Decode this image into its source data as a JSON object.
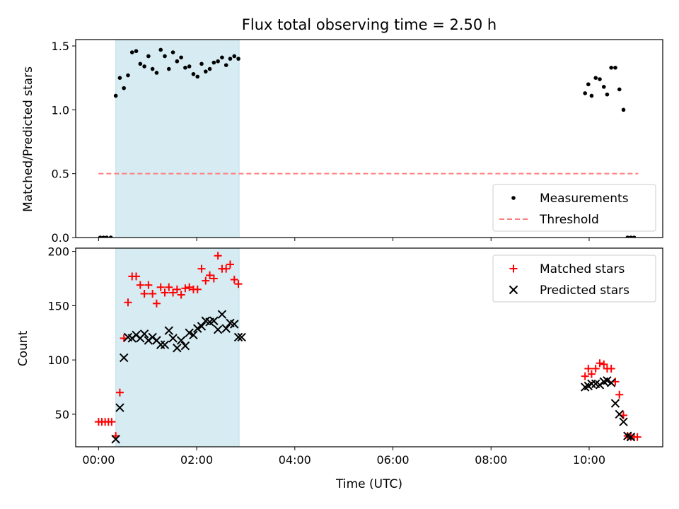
{
  "chart_data": [
    {
      "type": "scatter",
      "title": "Flux total observing time = 2.50 h",
      "xlabel": "",
      "ylabel": "Matched/Predicted stars",
      "xlim": [
        "-00:28",
        "11:30"
      ],
      "ylim": [
        0.0,
        1.55
      ],
      "xticks": [
        "00:00",
        "02:00",
        "04:00",
        "06:00",
        "08:00",
        "10:00"
      ],
      "xticklabels_visible": false,
      "yticks": [
        0.0,
        0.5,
        1.0,
        1.5
      ],
      "yticklabels": [
        "0.0",
        "0.5",
        "1.0",
        "1.5"
      ],
      "highlight_span": {
        "from": "00:21",
        "to": "02:52",
        "color": "#add8e6"
      },
      "legend": {
        "position": "lower right",
        "entries": [
          "Measurements",
          "Threshold"
        ]
      },
      "threshold": {
        "name": "Threshold",
        "y": 0.5,
        "x_from": "00:00",
        "x_to": "11:00",
        "color": "#ff7f7f",
        "style": "dashed"
      },
      "series": [
        {
          "name": "Measurements",
          "marker": "dot",
          "color": "#000000",
          "points": [
            [
              "00:02",
              0.0
            ],
            [
              "00:06",
              0.0
            ],
            [
              "00:10",
              0.0
            ],
            [
              "00:15",
              0.0
            ],
            [
              "00:21",
              1.11
            ],
            [
              "00:26",
              1.25
            ],
            [
              "00:31",
              1.17
            ],
            [
              "00:36",
              1.27
            ],
            [
              "00:41",
              1.45
            ],
            [
              "00:46",
              1.46
            ],
            [
              "00:51",
              1.36
            ],
            [
              "00:56",
              1.34
            ],
            [
              "01:01",
              1.42
            ],
            [
              "01:06",
              1.32
            ],
            [
              "01:11",
              1.29
            ],
            [
              "01:16",
              1.47
            ],
            [
              "01:21",
              1.42
            ],
            [
              "01:26",
              1.32
            ],
            [
              "01:31",
              1.45
            ],
            [
              "01:36",
              1.38
            ],
            [
              "01:41",
              1.41
            ],
            [
              "01:46",
              1.33
            ],
            [
              "01:51",
              1.34
            ],
            [
              "01:56",
              1.28
            ],
            [
              "02:01",
              1.26
            ],
            [
              "02:06",
              1.36
            ],
            [
              "02:11",
              1.3
            ],
            [
              "02:16",
              1.32
            ],
            [
              "02:21",
              1.37
            ],
            [
              "02:26",
              1.38
            ],
            [
              "02:31",
              1.41
            ],
            [
              "02:36",
              1.35
            ],
            [
              "02:41",
              1.4
            ],
            [
              "02:46",
              1.42
            ],
            [
              "02:51",
              1.4
            ],
            [
              "09:55",
              1.13
            ],
            [
              "09:59",
              1.2
            ],
            [
              "10:03",
              1.11
            ],
            [
              "10:08",
              1.25
            ],
            [
              "10:13",
              1.24
            ],
            [
              "10:18",
              1.18
            ],
            [
              "10:22",
              1.12
            ],
            [
              "10:27",
              1.33
            ],
            [
              "10:32",
              1.33
            ],
            [
              "10:37",
              1.16
            ],
            [
              "10:42",
              1.0
            ],
            [
              "10:47",
              0.0
            ],
            [
              "10:51",
              0.0
            ],
            [
              "10:55",
              0.0
            ]
          ]
        }
      ]
    },
    {
      "type": "scatter",
      "title": "",
      "xlabel": "Time (UTC)",
      "ylabel": "Count",
      "xlim": [
        "-00:28",
        "11:30"
      ],
      "ylim": [
        20,
        203
      ],
      "xticks": [
        "00:00",
        "02:00",
        "04:00",
        "06:00",
        "08:00",
        "10:00"
      ],
      "xticklabels": [
        "00:00",
        "02:00",
        "04:00",
        "06:00",
        "08:00",
        "10:00"
      ],
      "yticks": [
        50,
        100,
        150,
        200
      ],
      "yticklabels": [
        "50",
        "100",
        "150",
        "200"
      ],
      "highlight_span": {
        "from": "00:21",
        "to": "02:52",
        "color": "#add8e6"
      },
      "legend": {
        "position": "upper right",
        "entries": [
          "Matched stars",
          "Predicted stars"
        ]
      },
      "series": [
        {
          "name": "Matched stars",
          "marker": "plus",
          "color": "#ff0000",
          "points": [
            [
              "00:00",
              43
            ],
            [
              "00:04",
              43
            ],
            [
              "00:08",
              43
            ],
            [
              "00:12",
              43
            ],
            [
              "00:16",
              43
            ],
            [
              "00:21",
              30
            ],
            [
              "00:26",
              70
            ],
            [
              "00:31",
              120
            ],
            [
              "00:36",
              153
            ],
            [
              "00:41",
              177
            ],
            [
              "00:46",
              177
            ],
            [
              "00:51",
              169
            ],
            [
              "00:56",
              161
            ],
            [
              "01:01",
              169
            ],
            [
              "01:06",
              161
            ],
            [
              "01:11",
              152
            ],
            [
              "01:16",
              167
            ],
            [
              "01:21",
              162
            ],
            [
              "01:26",
              167
            ],
            [
              "01:31",
              162
            ],
            [
              "01:36",
              165
            ],
            [
              "01:41",
              160
            ],
            [
              "01:46",
              166
            ],
            [
              "01:51",
              167
            ],
            [
              "01:56",
              165
            ],
            [
              "02:01",
              165
            ],
            [
              "02:06",
              184
            ],
            [
              "02:11",
              173
            ],
            [
              "02:16",
              178
            ],
            [
              "02:21",
              175
            ],
            [
              "02:26",
              196
            ],
            [
              "02:31",
              184
            ],
            [
              "02:36",
              184
            ],
            [
              "02:41",
              188
            ],
            [
              "02:46",
              174
            ],
            [
              "02:51",
              170
            ],
            [
              "09:55",
              85
            ],
            [
              "09:59",
              92
            ],
            [
              "10:03",
              87
            ],
            [
              "10:08",
              92
            ],
            [
              "10:13",
              97
            ],
            [
              "10:18",
              96
            ],
            [
              "10:22",
              92
            ],
            [
              "10:27",
              92
            ],
            [
              "10:32",
              80
            ],
            [
              "10:37",
              68
            ],
            [
              "10:42",
              49
            ],
            [
              "10:47",
              30
            ],
            [
              "10:51",
              29
            ],
            [
              "10:55",
              29
            ],
            [
              "10:59",
              29
            ]
          ]
        },
        {
          "name": "Predicted stars",
          "marker": "x",
          "color": "#000000",
          "points": [
            [
              "00:21",
              27
            ],
            [
              "00:26",
              56
            ],
            [
              "00:31",
              102
            ],
            [
              "00:36",
              121
            ],
            [
              "00:41",
              120
            ],
            [
              "00:46",
              123
            ],
            [
              "00:51",
              120
            ],
            [
              "00:56",
              124
            ],
            [
              "01:01",
              118
            ],
            [
              "01:06",
              121
            ],
            [
              "01:11",
              118
            ],
            [
              "01:16",
              114
            ],
            [
              "01:21",
              114
            ],
            [
              "01:26",
              127
            ],
            [
              "01:31",
              120
            ],
            [
              "01:36",
              111
            ],
            [
              "01:41",
              118
            ],
            [
              "01:46",
              113
            ],
            [
              "01:51",
              125
            ],
            [
              "01:56",
              123
            ],
            [
              "02:01",
              129
            ],
            [
              "02:06",
              131
            ],
            [
              "02:11",
              136
            ],
            [
              "02:16",
              135
            ],
            [
              "02:21",
              136
            ],
            [
              "02:26",
              128
            ],
            [
              "02:31",
              142
            ],
            [
              "02:36",
              129
            ],
            [
              "02:41",
              134
            ],
            [
              "02:46",
              133
            ],
            [
              "02:51",
              121
            ],
            [
              "02:55",
              121
            ],
            [
              "09:55",
              75
            ],
            [
              "09:59",
              76
            ],
            [
              "10:03",
              78
            ],
            [
              "10:08",
              78
            ],
            [
              "10:13",
              77
            ],
            [
              "10:18",
              80
            ],
            [
              "10:22",
              81
            ],
            [
              "10:27",
              79
            ],
            [
              "10:32",
              60
            ],
            [
              "10:37",
              50
            ],
            [
              "10:42",
              43
            ],
            [
              "10:47",
              30
            ],
            [
              "10:51",
              29
            ]
          ]
        }
      ]
    }
  ]
}
